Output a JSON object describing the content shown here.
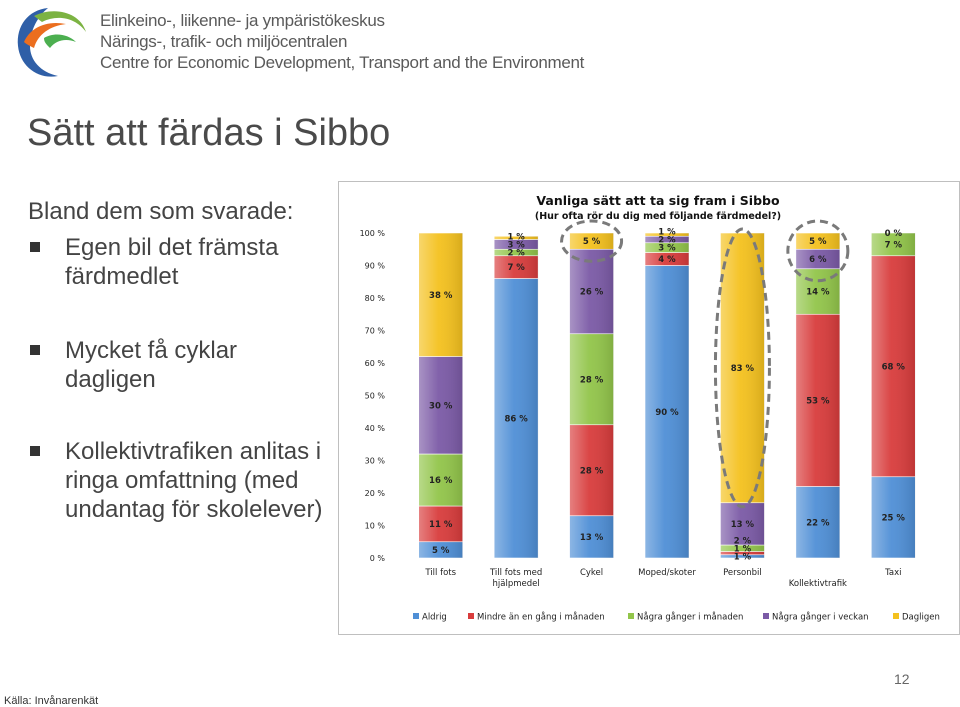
{
  "header": {
    "org_lines": [
      "Elinkeino-, liikenne- ja ympäristökeskus",
      "Närings-, trafik- och miljöcentralen",
      "Centre for Economic Development, Transport and the Environment"
    ]
  },
  "slide": {
    "title": "Sätt att färdas i Sibbo",
    "lead": "Bland dem som svarade:",
    "bullets": [
      "Egen bil det främsta färdmedlet",
      "Mycket få cyklar dagligen",
      "Kollektivtrafiken anlitas i ringa omfattning (med undantag för skolelever)"
    ],
    "source": "Källa: Invånarenkät",
    "page_number": "12"
  },
  "colors": {
    "Aldrig": "#4f8fd6",
    "Mindre än en gång i månaden": "#d83c3c",
    "Några gånger i månaden": "#92c54a",
    "Några gånger i veckan": "#7b5aa6",
    "Dagligen": "#f4c11e"
  },
  "chart_data": {
    "type": "bar",
    "stacked": true,
    "title": "Vanliga sätt att ta sig fram i Sibbo",
    "subtitle": "(Hur ofta rör du dig med följande färdmedel?)",
    "categories": [
      "Till fots",
      "Till fots med hjälpmedel",
      "Cykel",
      "Moped/skoter",
      "Personbil",
      "Kollektivtrafik",
      "Taxi"
    ],
    "series": [
      {
        "name": "Aldrig",
        "values": [
          5,
          86,
          13,
          90,
          1,
          22,
          25
        ],
        "labels": [
          "5 %",
          "86 %",
          "13 %",
          "90 %",
          "1 %",
          "22 %",
          "25 %"
        ]
      },
      {
        "name": "Mindre än en gång i månaden",
        "values": [
          11,
          7,
          28,
          4,
          1,
          53,
          68
        ],
        "labels": [
          "11 %",
          "7 %",
          "28 %",
          "4 %",
          "1 %",
          "53 %",
          "68 %"
        ]
      },
      {
        "name": "Några gånger i månaden",
        "values": [
          16,
          2,
          28,
          3,
          2,
          14,
          7
        ],
        "labels": [
          "16 %",
          "2 %",
          "28 %",
          "3 %",
          "2 %",
          "14 %",
          "7 %"
        ]
      },
      {
        "name": "Några gånger i veckan",
        "values": [
          30,
          3,
          26,
          2,
          13,
          6,
          0
        ],
        "labels": [
          "30 %",
          "3 %",
          "26 %",
          "2 %",
          "13 %",
          "6 %",
          "0 %"
        ]
      },
      {
        "name": "Dagligen",
        "values": [
          38,
          1,
          5,
          1,
          83,
          5,
          0
        ],
        "labels": [
          "38 %",
          "1 %",
          "5 %",
          "1 %",
          "83 %",
          "5 %",
          ""
        ]
      }
    ],
    "yticks": [
      "0 %",
      "10 %",
      "20 %",
      "30 %",
      "40 %",
      "50 %",
      "60 %",
      "70 %",
      "80 %",
      "90 %",
      "100 %"
    ],
    "ylim": [
      0,
      100
    ],
    "legend": "bottom",
    "highlighted": [
      "Cykel: Dagligen",
      "Personbil: Dagligen",
      "Kollektivtrafik: Några gånger i veckan",
      "Kollektivtrafik: Dagligen"
    ]
  }
}
